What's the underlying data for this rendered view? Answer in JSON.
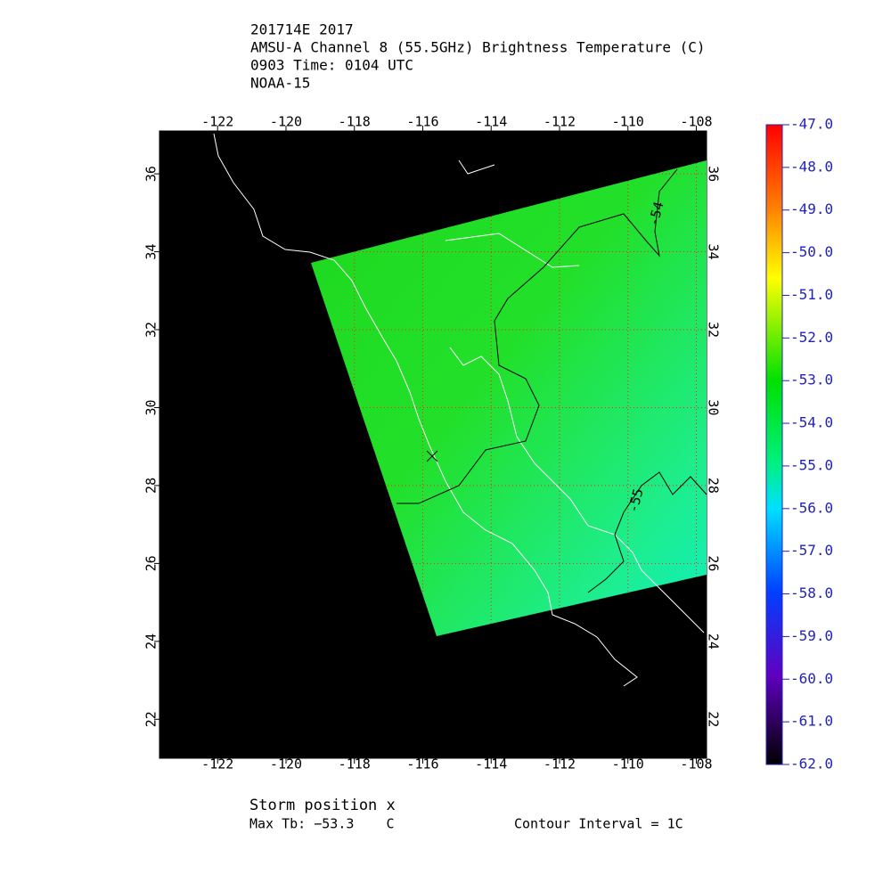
{
  "header": {
    "lines": [
      "201714E 2017",
      "AMSU-A Channel 8 (55.5GHz) Brightness Temperature (C)",
      "0903 Time: 0104 UTC",
      "NOAA-15"
    ]
  },
  "map": {
    "xlim": [
      -123.7,
      -107.7
    ],
    "ylim": [
      21,
      37.1
    ],
    "xticks": [
      -122,
      -120,
      -118,
      -116,
      -114,
      -112,
      -110,
      -108
    ],
    "yticks": [
      22,
      24,
      26,
      28,
      30,
      32,
      34,
      36
    ],
    "grid": true,
    "grid_color": "#ff2020",
    "contour_labels": [
      "-54",
      "-55"
    ]
  },
  "colorbar": {
    "lim": [
      -62,
      -47
    ],
    "ticks": [
      {
        "value": -47,
        "label": "-47.0"
      },
      {
        "value": -48,
        "label": "-48.0"
      },
      {
        "value": -49,
        "label": "-49.0"
      },
      {
        "value": -50,
        "label": "-50.0"
      },
      {
        "value": -51,
        "label": "-51.0"
      },
      {
        "value": -52,
        "label": "-52.0"
      },
      {
        "value": -53,
        "label": "-53.0"
      },
      {
        "value": -54,
        "label": "-54.0"
      },
      {
        "value": -55,
        "label": "-55.0"
      },
      {
        "value": -56,
        "label": "-56.0"
      },
      {
        "value": -57,
        "label": "-57.0"
      },
      {
        "value": -58,
        "label": "-58.0"
      },
      {
        "value": -59,
        "label": "-59.0"
      },
      {
        "value": -60,
        "label": "-60.0"
      },
      {
        "value": -61,
        "label": "-61.0"
      },
      {
        "value": -62,
        "label": "-62.0"
      }
    ]
  },
  "footer": {
    "storm": "Storm position x",
    "max_tb": "Max Tb: −53.3    C",
    "interval": "Contour Interval = 1C"
  }
}
